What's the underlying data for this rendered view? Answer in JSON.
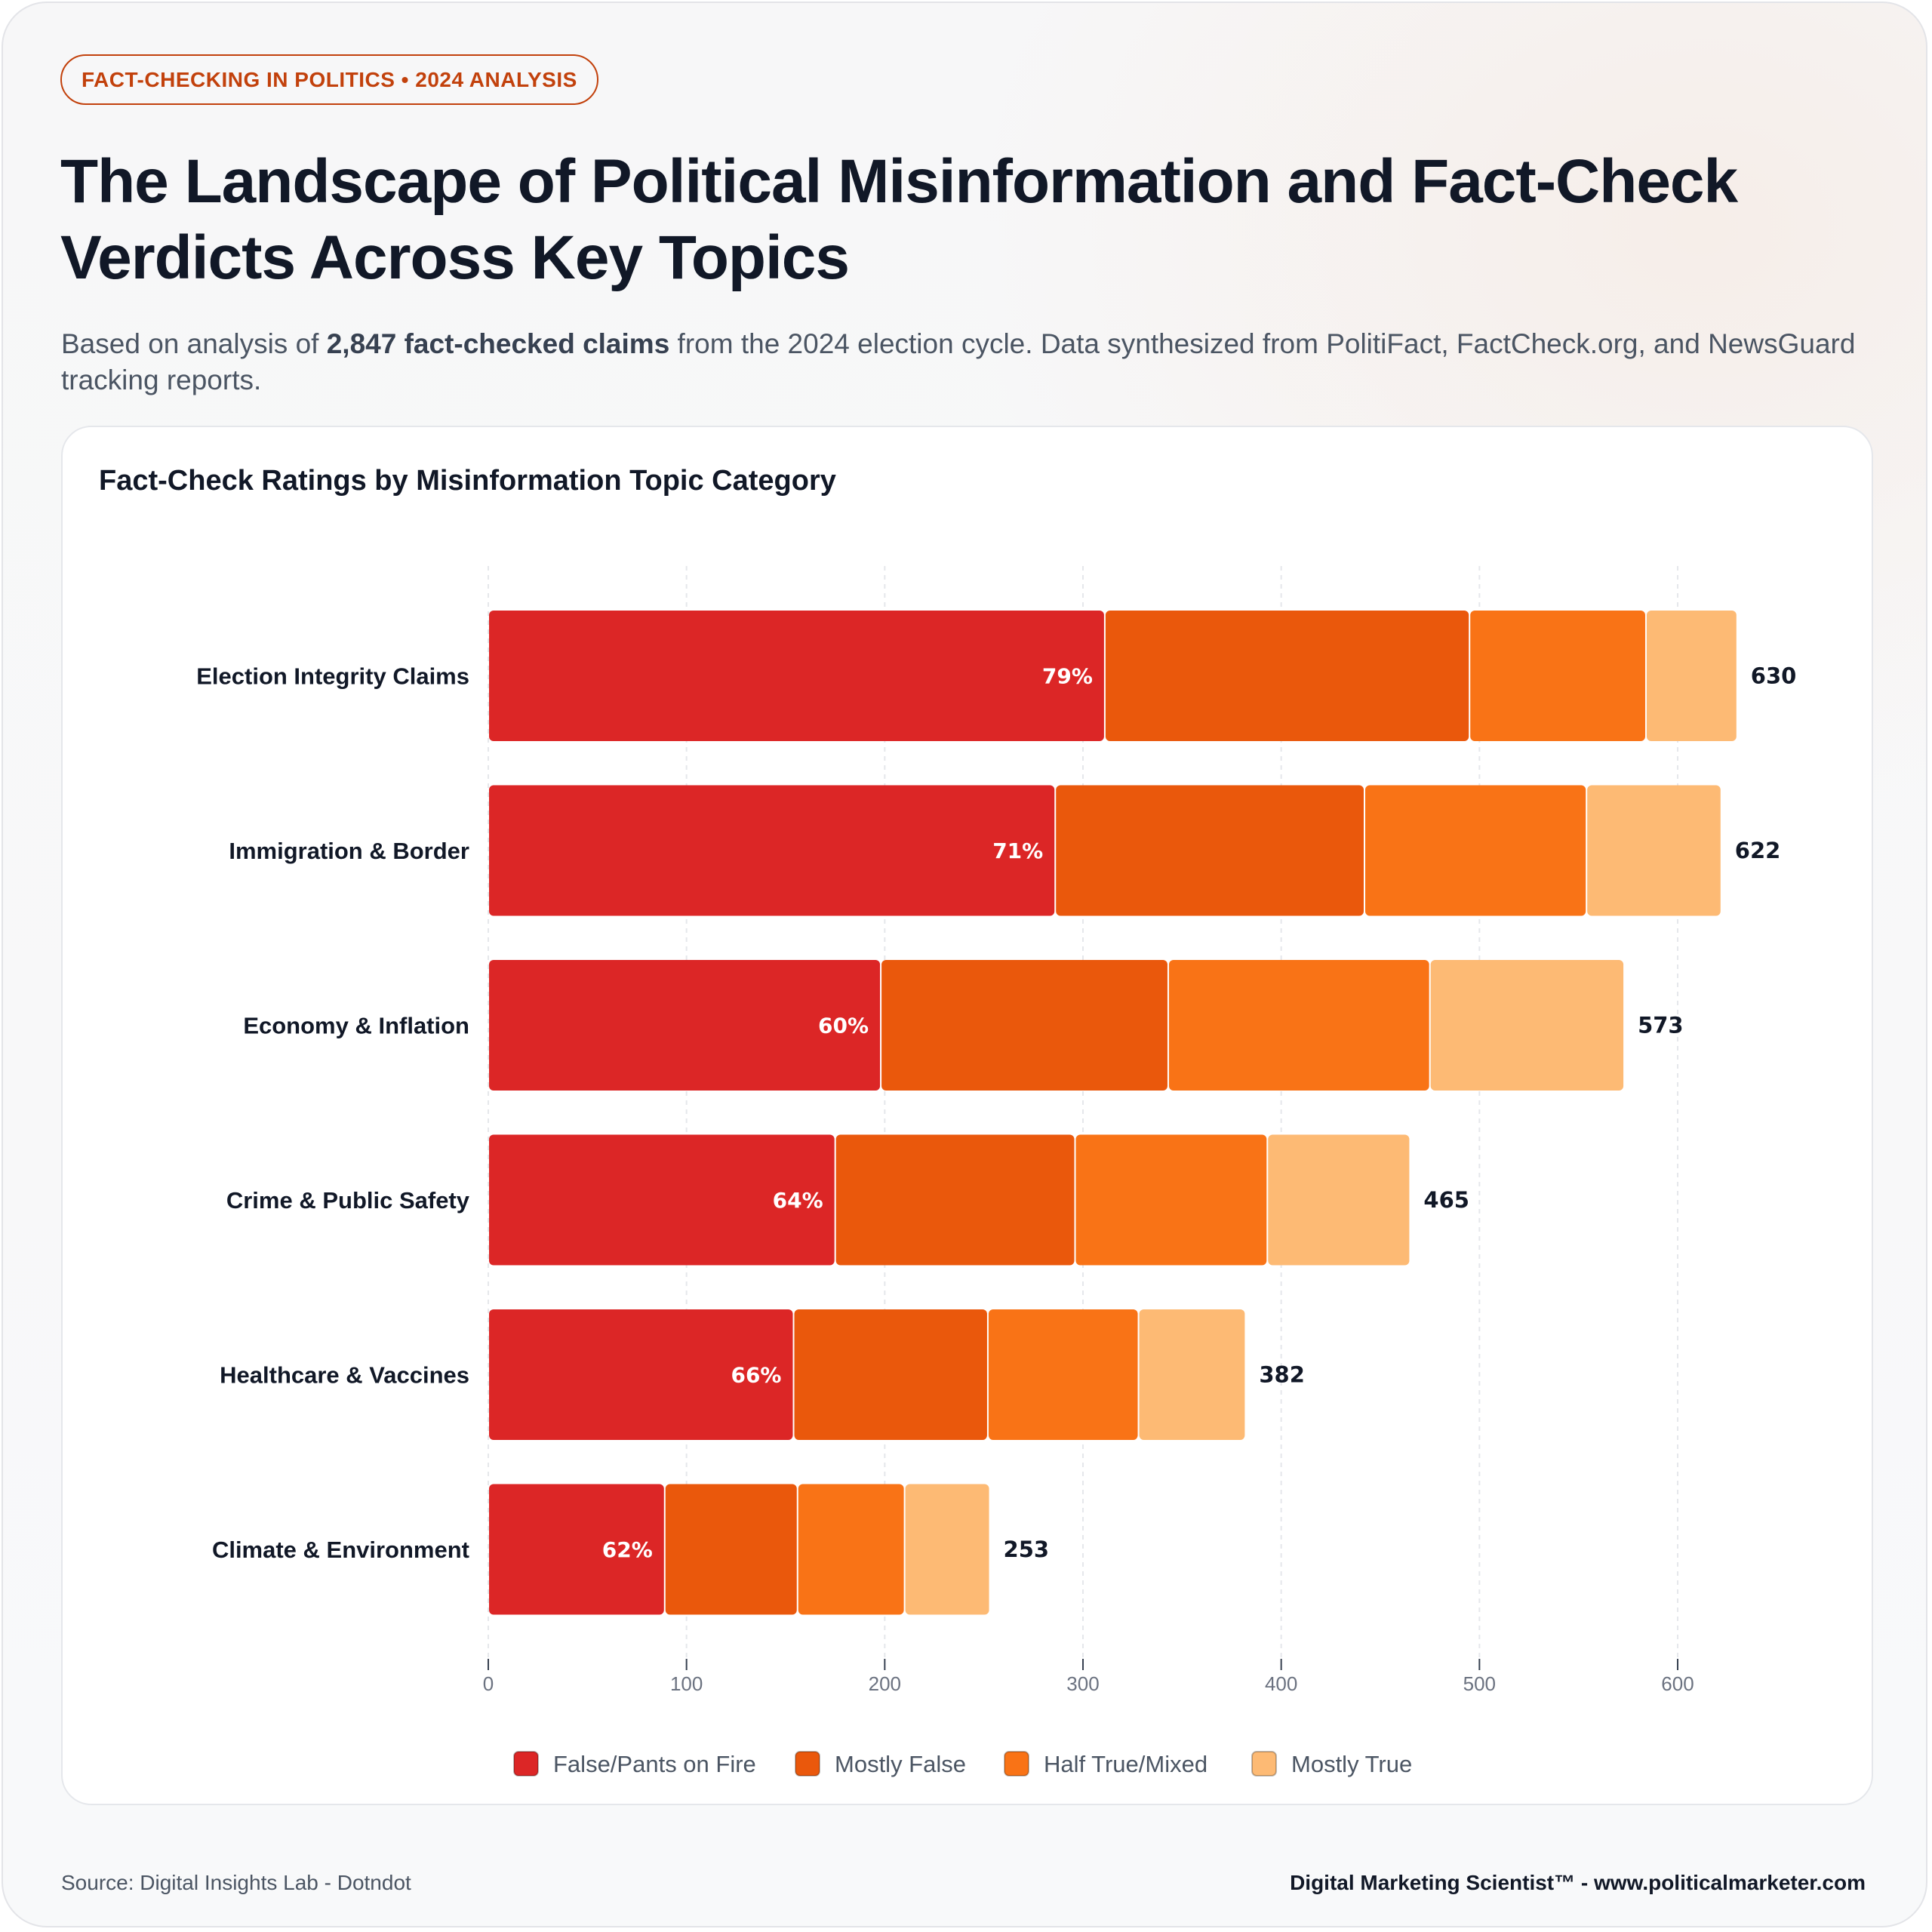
{
  "header": {
    "badge": "FACT-CHECKING IN POLITICS • 2024 ANALYSIS",
    "title": "The Landscape of Political Misinformation and Fact-Check Verdicts Across Key Topics",
    "subtitle_pre": "Based on analysis of ",
    "subtitle_bold": "2,847 fact-checked claims",
    "subtitle_post": " from the 2024 election cycle. Data synthesized from PolitiFact, FactCheck.org, and NewsGuard tracking reports."
  },
  "footer": {
    "source": "Source: Digital Insights Lab - Dotndot",
    "brand": "Digital Marketing Scientist™ - www.politicalmarketer.com"
  },
  "colors": {
    "accent": "#c2410c",
    "false": "#dc2626",
    "mostly_false": "#ea580c",
    "half_true": "#f97316",
    "mostly_true": "#fdba74"
  },
  "chart_data": {
    "type": "bar",
    "orientation": "horizontal",
    "stacked": true,
    "title": "Fact-Check Ratings by Misinformation Topic Category",
    "xlabel": "",
    "ylabel": "",
    "xlim": [
      0,
      600
    ],
    "xticks": [
      0,
      100,
      200,
      300,
      400,
      500,
      600
    ],
    "grid": true,
    "legend_position": "bottom-center",
    "categories": [
      "Election Integrity Claims",
      "Immigration & Border",
      "Economy & Inflation",
      "Crime & Public Safety",
      "Healthcare & Vaccines",
      "Climate & Environment"
    ],
    "series": [
      {
        "name": "False/Pants on Fire",
        "color": "#dc2626",
        "values": [
          311,
          286,
          198,
          175,
          154,
          89
        ]
      },
      {
        "name": "Mostly False",
        "color": "#ea580c",
        "values": [
          184,
          156,
          145,
          121,
          98,
          67
        ]
      },
      {
        "name": "Half True/Mixed",
        "color": "#f97316",
        "values": [
          89,
          112,
          132,
          97,
          76,
          54
        ]
      },
      {
        "name": "Mostly True",
        "color": "#fdba74",
        "values": [
          46,
          68,
          98,
          72,
          54,
          43
        ]
      }
    ],
    "totals": [
      630,
      622,
      573,
      465,
      382,
      253
    ],
    "false_share_labels": [
      "79%",
      "71%",
      "60%",
      "64%",
      "66%",
      "62%"
    ]
  }
}
